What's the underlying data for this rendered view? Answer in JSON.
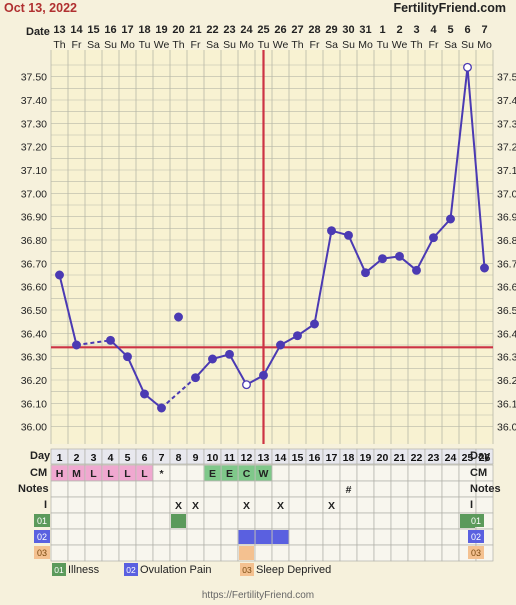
{
  "header": {
    "date": "Oct 13, 2022",
    "site": "FertilityFriend.com",
    "date_label": "Date",
    "day_label": "Day",
    "cm_label": "CM",
    "notes_label": "Notes"
  },
  "dates": [
    "13",
    "14",
    "15",
    "16",
    "17",
    "18",
    "19",
    "20",
    "21",
    "22",
    "23",
    "24",
    "25",
    "26",
    "27",
    "28",
    "29",
    "30",
    "31",
    "1",
    "2",
    "3",
    "4",
    "5",
    "6",
    "7"
  ],
  "weekdays": [
    "Th",
    "Fr",
    "Sa",
    "Su",
    "Mo",
    "Tu",
    "We",
    "Th",
    "Fr",
    "Sa",
    "Su",
    "Mo",
    "Tu",
    "We",
    "Th",
    "Fr",
    "Sa",
    "Su",
    "Mo",
    "Tu",
    "We",
    "Th",
    "Fr",
    "Sa",
    "Su",
    "Mo"
  ],
  "cycle_days": [
    "1",
    "2",
    "3",
    "4",
    "5",
    "6",
    "7",
    "8",
    "9",
    "10",
    "11",
    "12",
    "13",
    "14",
    "15",
    "16",
    "17",
    "18",
    "19",
    "20",
    "21",
    "22",
    "23",
    "24",
    "25",
    "26"
  ],
  "cm": [
    "H",
    "M",
    "L",
    "L",
    "L",
    "L",
    "*",
    "",
    "",
    "E",
    "E",
    "C",
    "W",
    "",
    "",
    "",
    "",
    "",
    "",
    "",
    "",
    "",
    "",
    "",
    "",
    ""
  ],
  "notes": [
    "",
    "",
    "",
    "",
    "",
    "",
    "",
    "",
    "",
    "",
    "",
    "",
    "",
    "",
    "",
    "",
    "",
    "#",
    "",
    "",
    "",
    "",
    "",
    "",
    "",
    ""
  ],
  "intercourse": [
    "",
    "",
    "",
    "",
    "",
    "",
    "",
    "X",
    "X",
    "",
    "",
    "X",
    "",
    "X",
    "",
    "",
    "X",
    "",
    "",
    "",
    "",
    "",
    "",
    "",
    "",
    ""
  ],
  "row_labels": {
    "i": "I",
    "r1": "01",
    "r2": "02",
    "r3": "03"
  },
  "legend": [
    {
      "code": "01",
      "label": "Illness",
      "color": "#5b9a5b"
    },
    {
      "code": "02",
      "label": "Ovulation Pain",
      "color": "#5a60e0"
    },
    {
      "code": "03",
      "label": "Sleep Deprived",
      "color": "#f4c190"
    }
  ],
  "footer": "https://FertilityFriend.com",
  "colors": {
    "line": "#4b3ab3",
    "coverline": "#cc3344",
    "grid": "#b8b8a8",
    "cm_pink": "#f0a8d0",
    "cm_green": "#7fc88a"
  },
  "chart_data": {
    "type": "line",
    "title": "",
    "xlabel": "Day",
    "ylabel": "",
    "ylim": [
      35.96,
      37.58
    ],
    "yticks": [
      "36.00",
      "36.10",
      "36.20",
      "36.30",
      "36.40",
      "36.50",
      "36.60",
      "36.70",
      "36.80",
      "36.90",
      "37.00",
      "37.10",
      "37.20",
      "37.30",
      "37.40",
      "37.50"
    ],
    "x": [
      1,
      2,
      3,
      4,
      5,
      6,
      7,
      8,
      9,
      10,
      11,
      12,
      13,
      14,
      15,
      16,
      17,
      18,
      19,
      20,
      21,
      22,
      23,
      24,
      25,
      26
    ],
    "temps": [
      36.65,
      36.35,
      null,
      36.37,
      36.3,
      36.14,
      36.08,
      36.47,
      36.21,
      36.29,
      36.31,
      36.18,
      36.22,
      36.35,
      36.39,
      36.44,
      36.84,
      36.82,
      36.66,
      36.72,
      36.73,
      36.67,
      36.81,
      36.89,
      37.54,
      36.68
    ],
    "open_markers": [
      12,
      25
    ],
    "dashed_segments": [
      [
        2,
        4
      ],
      [
        7,
        9
      ]
    ],
    "discarded_points": [
      8
    ],
    "coverline": 36.34,
    "ovulation_day": 13,
    "illness_days": [
      8,
      25
    ],
    "ovulation_pain_days": [
      12,
      13,
      14
    ],
    "sleep_deprived_days": [
      12
    ]
  }
}
